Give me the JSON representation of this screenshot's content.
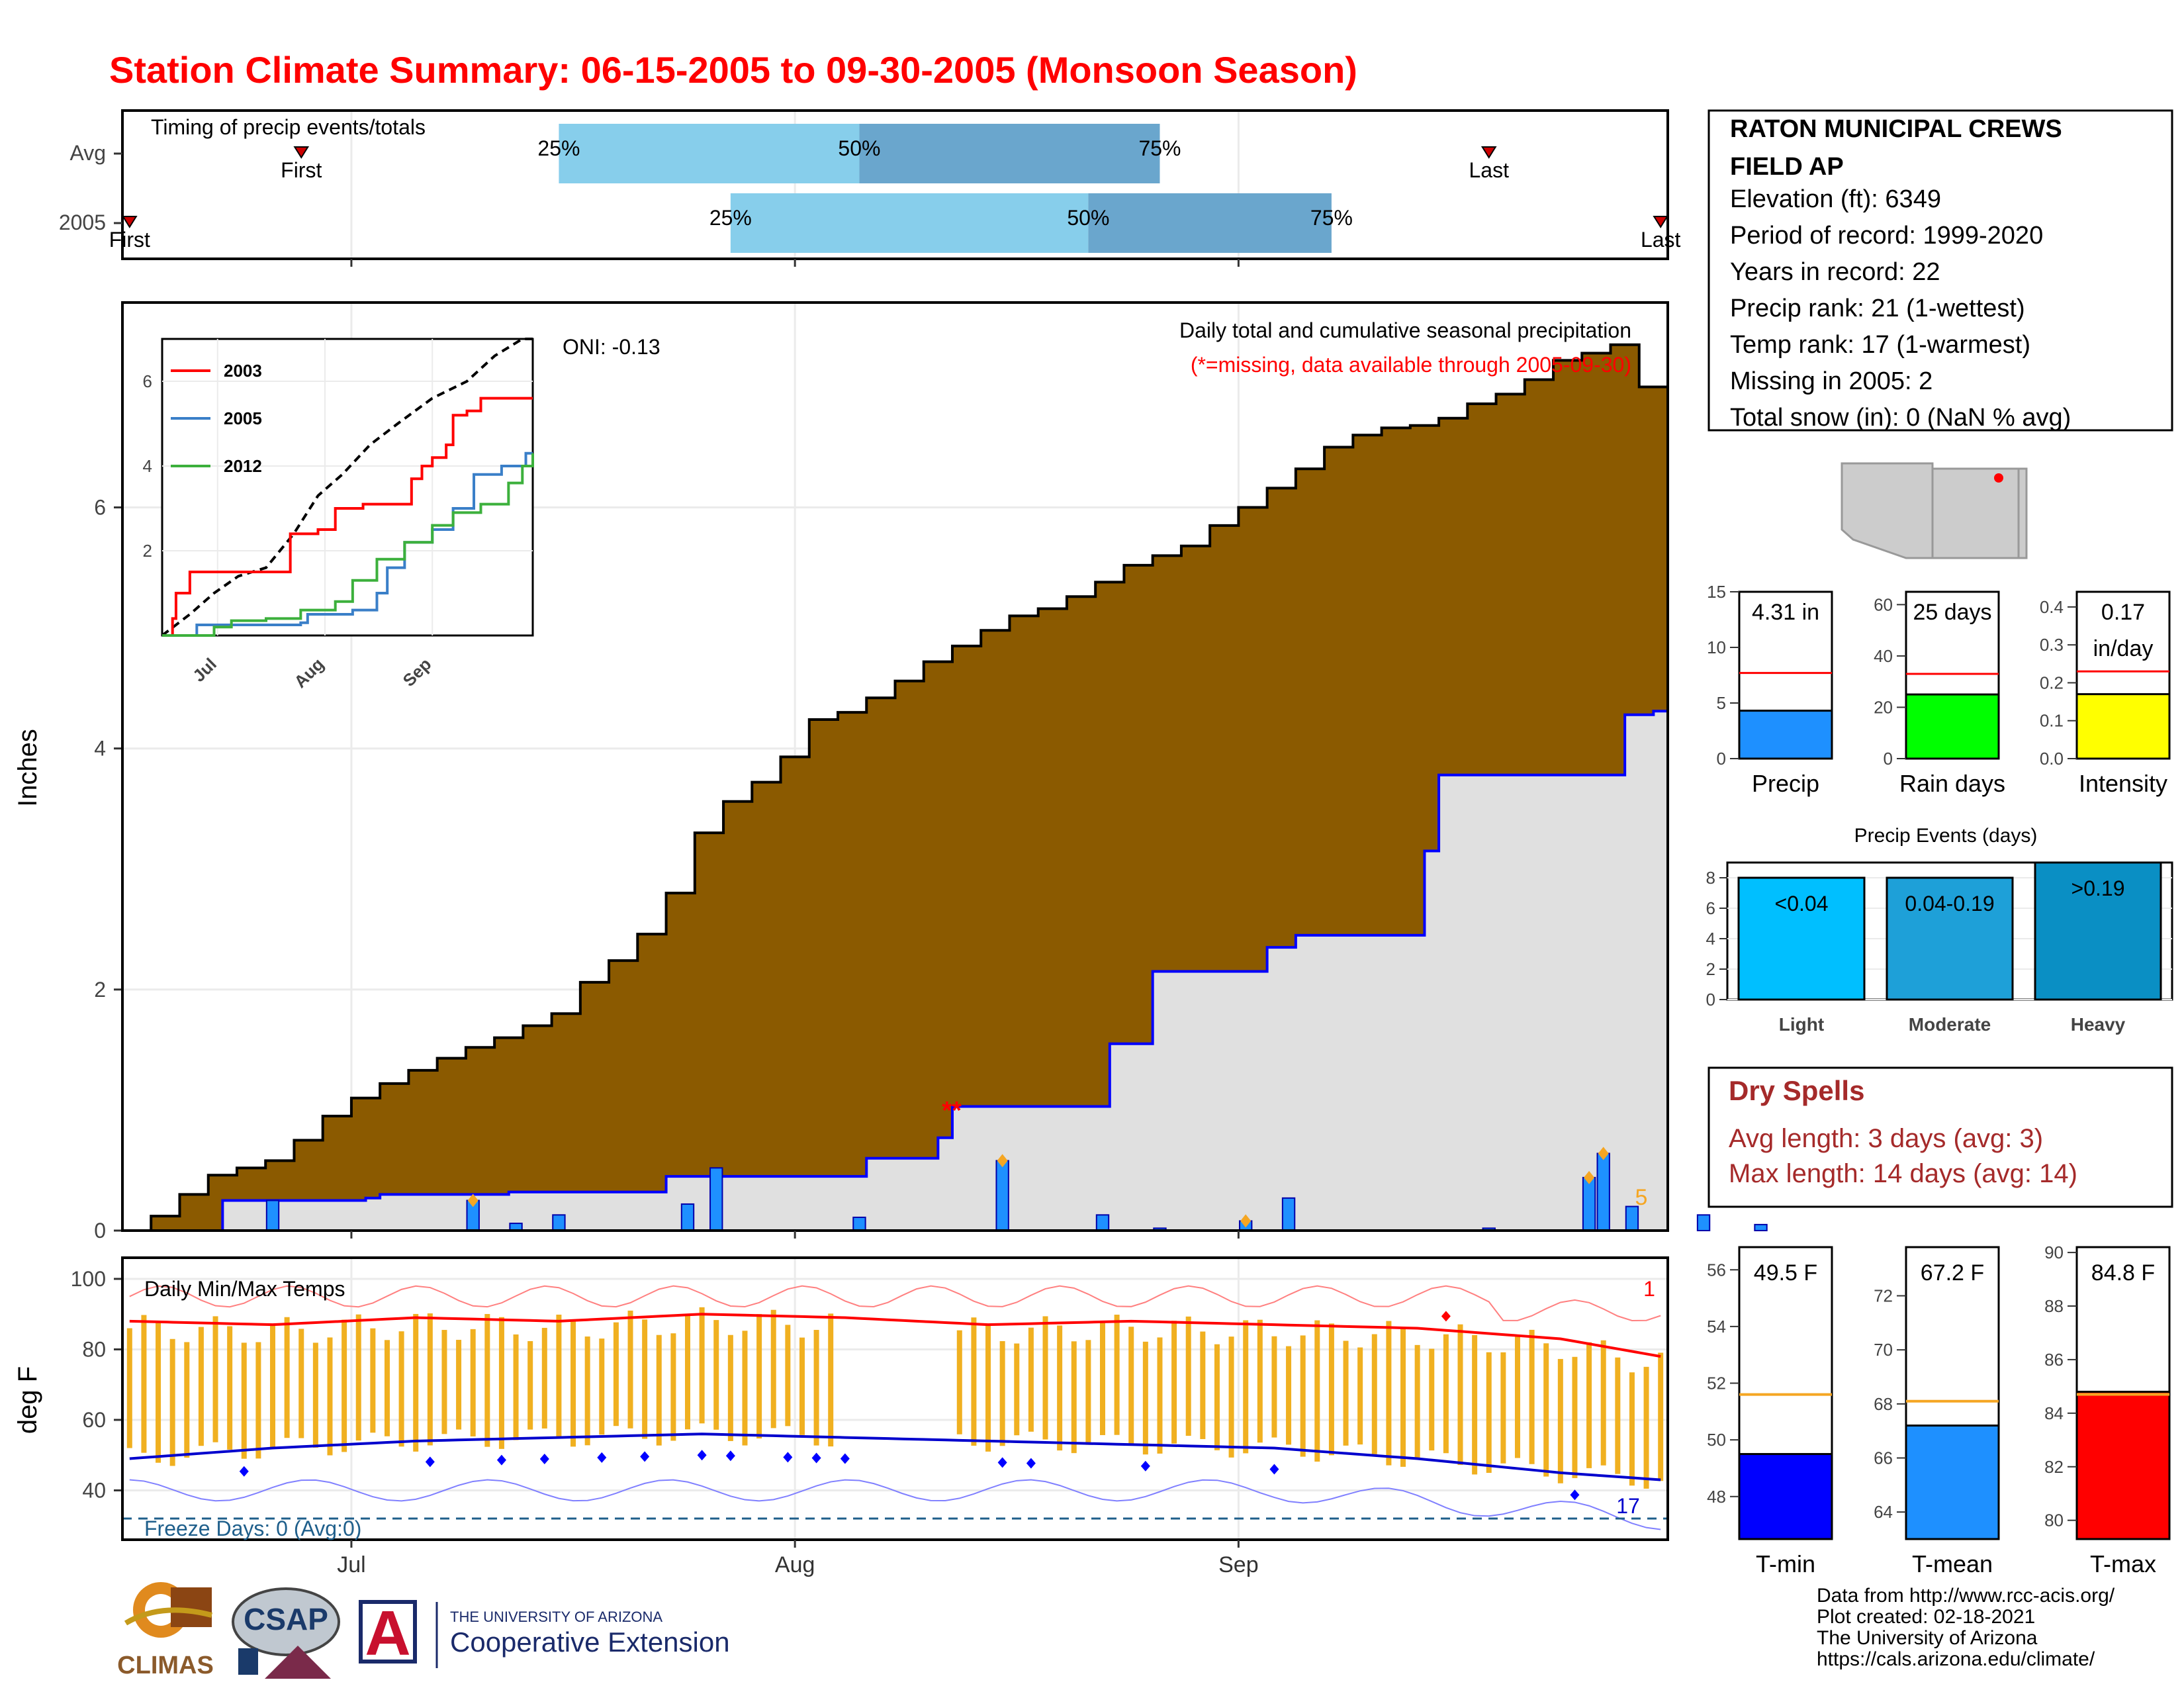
{
  "title": "Station Climate Summary: 06-15-2005 to 09-30-2005 (Monsoon Season)",
  "colors": {
    "title": "#ff0000",
    "cumulative_avg_fill": "#8b5a00",
    "cumulative_2005_fill": "#e0e0e0",
    "cumulative_2005_line": "#0000ff",
    "daily_bar": "#1e90ff",
    "light_blue": "#87ceeb",
    "mid_blue": "#6aa6cd",
    "missing": "#ff0000",
    "extreme_marker": "#f5a623",
    "range_bar": "#f0b020",
    "tmax_line": "#ff0000",
    "tmin_line": "#0000cd",
    "freeze_line": "#1f5f8b",
    "dry_spells": "#a52a2a"
  },
  "timing_panel": {
    "label": "Timing of precip events/totals",
    "rows": [
      {
        "name": "Avg",
        "first_label": "First",
        "last_label": "Last",
        "first": "2005-06-27",
        "p25": "2005-07-15",
        "p50": "2005-08-05",
        "p75": "2005-08-26",
        "last": "2005-09-18"
      },
      {
        "name": "2005",
        "first_label": "First",
        "last_label": "Last",
        "first": "2005-06-15",
        "p25": "2005-07-27",
        "p50": "2005-08-21",
        "p75": "2005-09-07",
        "last": "2005-09-30"
      }
    ],
    "pct_labels": [
      "25%",
      "50%",
      "75%"
    ]
  },
  "main_panel": {
    "ylabel": "Inches",
    "yticks": [
      0,
      2,
      4,
      6
    ],
    "ylim": [
      0,
      7.7
    ],
    "note_line1": "Daily total and cumulative seasonal precipitation",
    "note_line2": "(*=missing, data available through 2005-09-30)",
    "oni": "ONI: -0.13",
    "missing_mark": "**",
    "extreme_count": "5"
  },
  "inset": {
    "yticks": [
      "2",
      "4",
      "6"
    ],
    "xticks": [
      "Jul",
      "Aug",
      "Sep"
    ],
    "legend": [
      "2003",
      "2005",
      "2012"
    ],
    "colors": [
      "#ff0000",
      "#3a7fc8",
      "#3cb03c"
    ]
  },
  "temp_panel": {
    "ylabel": "deg F",
    "label": "Daily Min/Max Temps",
    "yticks": [
      40,
      60,
      80,
      100
    ],
    "ylim": [
      26,
      106
    ],
    "freeze_label": "Freeze Days: 0 (Avg:0)",
    "freeze_level": 32,
    "record_high_count": "1",
    "record_low_count": "17"
  },
  "xaxis": {
    "start": "2005-06-15",
    "end": "2005-09-30",
    "ticks": [
      "Jul",
      "Aug",
      "Sep"
    ]
  },
  "station": {
    "name_line1": "RATON MUNICIPAL CREWS",
    "name_line2": "FIELD AP",
    "lines": [
      "Elevation (ft): 6349",
      "Period of record: 1999-2020",
      "Years in record: 22",
      "Precip rank: 21 (1-wettest)",
      "Temp rank: 17 (1-warmest)",
      "Missing in 2005: 2",
      "Total snow (in): 0 (NaN % avg)"
    ]
  },
  "summary_bars": [
    {
      "label": "Precip",
      "value_label": "4.31 in",
      "value": 4.31,
      "avg": 7.7,
      "ymax": 15,
      "ticks": [
        0,
        5,
        10,
        15
      ],
      "color": "#1e90ff"
    },
    {
      "label": "Rain days",
      "value_label": "25 days",
      "value": 25,
      "avg": 33,
      "ymax": 65,
      "ticks": [
        0,
        20,
        40,
        60
      ],
      "color": "#00ff00"
    },
    {
      "label": "Intensity",
      "value_label": "0.17\nin/day",
      "value": 0.17,
      "avg": 0.23,
      "ymax": 0.44,
      "ticks": [
        0.0,
        0.1,
        0.2,
        0.3,
        0.4
      ],
      "color": "#ffff00"
    }
  ],
  "precip_events": {
    "title": "Precip Events (days)",
    "categories": [
      "Light",
      "Moderate",
      "Heavy"
    ],
    "bar_labels": [
      "<0.04",
      "0.04-0.19",
      ">0.19"
    ],
    "values": [
      8,
      8,
      9
    ],
    "ticks": [
      0,
      2,
      4,
      6,
      8
    ],
    "colors": [
      "#00bfff",
      "#1ea0d8",
      "#0a8fc4"
    ]
  },
  "dry_spells": {
    "title": "Dry Spells",
    "avg_line": "Avg length: 3 days (avg: 3)",
    "max_line": "Max length: 14 days (avg: 14)"
  },
  "temp_bars": [
    {
      "label": "T-min",
      "value_label": "49.5 F",
      "value": 49.5,
      "avg": 51.6,
      "ymin": 46.5,
      "ymax": 56.8,
      "ticks": [
        48,
        50,
        52,
        54,
        56
      ],
      "color": "#0000ff"
    },
    {
      "label": "T-mean",
      "value_label": "67.2 F",
      "value": 67.2,
      "avg": 68.1,
      "ymin": 63.0,
      "ymax": 73.8,
      "ticks": [
        64,
        66,
        68,
        70,
        72
      ],
      "color": "#1e90ff"
    },
    {
      "label": "T-max",
      "value_label": "84.8 F",
      "value": 84.8,
      "avg": 84.7,
      "ymin": 79.3,
      "ymax": 90.2,
      "ticks": [
        80,
        82,
        84,
        86,
        88,
        90
      ],
      "color": "#ff0000"
    }
  ],
  "credits": [
    "Data from http://www.rcc-acis.org/",
    "Plot created: 02-18-2021",
    "The University of Arizona",
    "https://cals.arizona.edu/climate/"
  ],
  "logos": {
    "climas": "CLIMAS",
    "csap": "CSAP",
    "ua_line1": "THE UNIVERSITY OF ARIZONA",
    "ua_line2": "Cooperative Extension"
  },
  "chart_data": [
    {
      "type": "area",
      "title": "Daily total and cumulative seasonal precipitation",
      "ylabel": "Inches",
      "ylim": [
        0,
        7.7
      ],
      "x_start": "2005-06-15",
      "cumulative_avg": {
        "days": [
          0,
          2,
          4,
          6,
          8,
          10,
          12,
          14,
          16,
          18,
          20,
          22,
          24,
          26,
          28,
          30,
          32,
          34,
          36,
          38,
          40,
          42,
          44,
          46,
          48,
          50,
          52,
          54,
          56,
          58,
          60,
          62,
          64,
          66,
          68,
          70,
          72,
          74,
          76,
          78,
          80,
          82,
          84,
          86,
          88,
          90,
          92,
          94,
          96,
          98,
          100,
          102,
          104,
          106,
          107
        ],
        "values": [
          0.0,
          0.12,
          0.3,
          0.46,
          0.52,
          0.58,
          0.75,
          0.95,
          1.1,
          1.22,
          1.33,
          1.43,
          1.52,
          1.6,
          1.7,
          1.8,
          2.06,
          2.24,
          2.46,
          2.8,
          3.3,
          3.56,
          3.72,
          3.93,
          4.24,
          4.3,
          4.42,
          4.56,
          4.72,
          4.85,
          4.98,
          5.1,
          5.16,
          5.26,
          5.38,
          5.52,
          5.6,
          5.68,
          5.85,
          6.0,
          6.16,
          6.32,
          6.5,
          6.6,
          6.66,
          6.68,
          6.74,
          6.86,
          6.94,
          7.06,
          7.22,
          7.28,
          7.35,
          7.0,
          7.0
        ]
      },
      "cumulative_2005": {
        "days": [
          0,
          7,
          17,
          18,
          27,
          38,
          52,
          57,
          58,
          69,
          72,
          80,
          82,
          91,
          92,
          105,
          107
        ],
        "values": [
          0.0,
          0.25,
          0.27,
          0.3,
          0.32,
          0.45,
          0.6,
          0.77,
          1.03,
          1.55,
          2.15,
          2.35,
          2.45,
          3.15,
          3.78,
          4.28,
          4.31
        ]
      },
      "daily_bars": {
        "days": [
          10,
          24,
          27,
          30,
          39,
          41,
          51,
          61,
          68,
          72,
          78,
          81,
          95,
          102,
          103,
          105,
          110,
          114
        ],
        "values": [
          0.25,
          0.25,
          0.06,
          0.13,
          0.22,
          0.52,
          0.11,
          0.58,
          0.13,
          0.02,
          0.08,
          0.27,
          0.02,
          0.44,
          0.64,
          0.2,
          0.13,
          0.05
        ]
      }
    },
    {
      "type": "line",
      "title": "Daily Min/Max Temps",
      "ylabel": "deg F",
      "ylim": [
        26,
        106
      ],
      "tmax_series": {
        "days": [
          0,
          10,
          20,
          30,
          40,
          50,
          60,
          70,
          80,
          90,
          100,
          107
        ],
        "values": [
          88,
          87,
          89,
          88,
          90,
          89,
          87,
          88,
          87,
          86,
          83,
          78
        ]
      },
      "tmin_series": {
        "days": [
          0,
          10,
          20,
          30,
          40,
          50,
          60,
          70,
          80,
          90,
          100,
          107
        ],
        "values": [
          49,
          52,
          54,
          55,
          56,
          55,
          54,
          53,
          52,
          49,
          45,
          43
        ]
      },
      "freeze_level": 32
    }
  ]
}
